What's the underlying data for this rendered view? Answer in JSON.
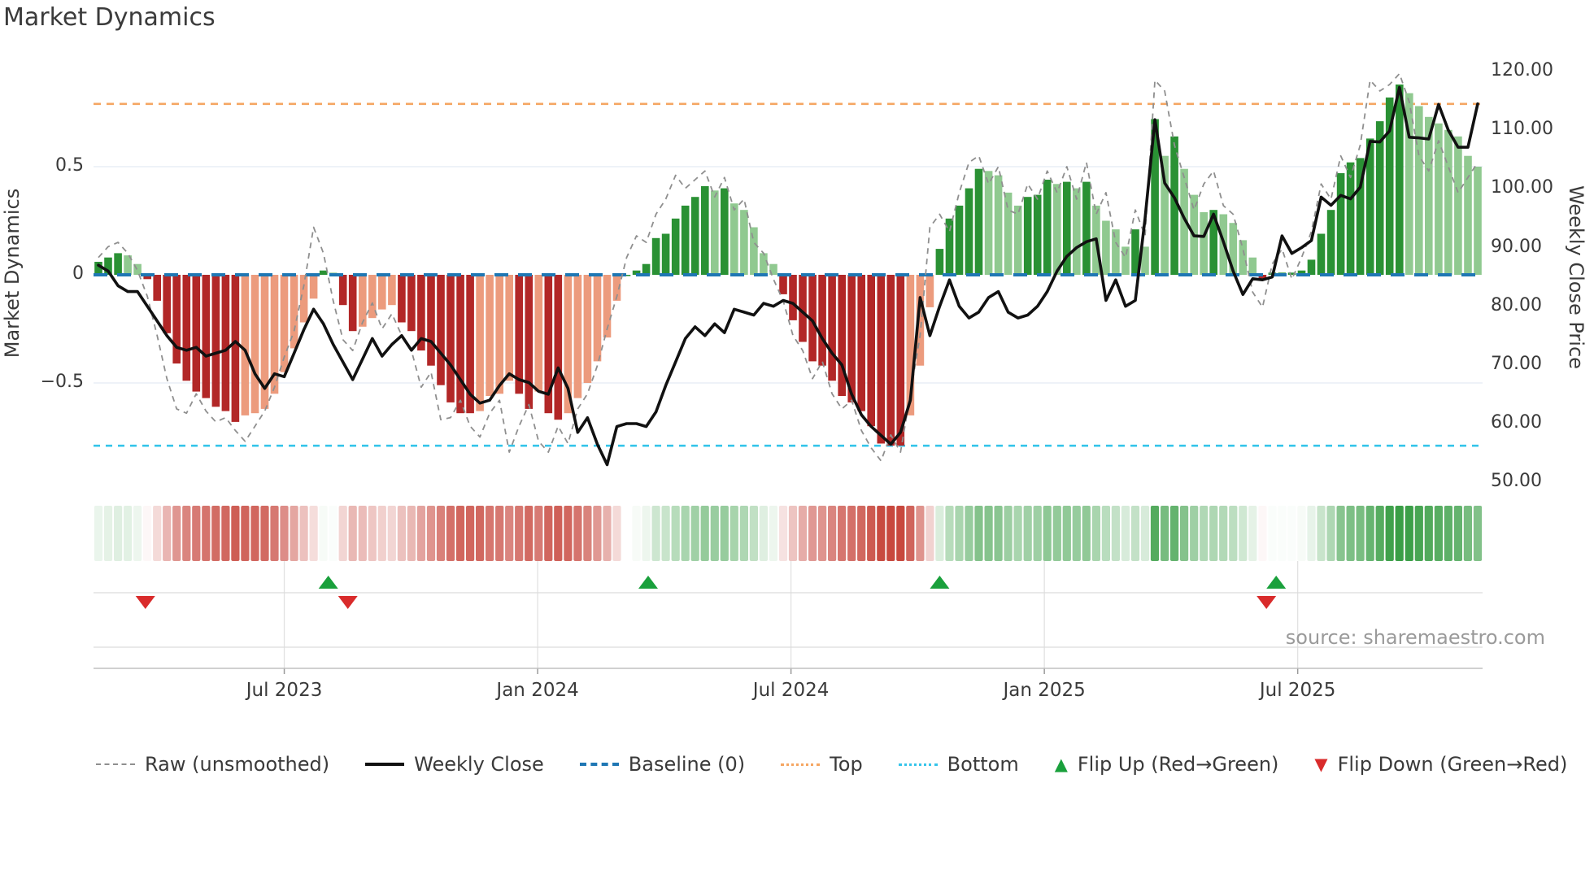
{
  "title": "Market Dynamics",
  "source": "source: sharemaestro.com",
  "left_axis": {
    "title": "Market Dynamics",
    "ticks": [
      {
        "label": "0.5",
        "value": 0.5
      },
      {
        "label": "0",
        "value": 0.0
      },
      {
        "label": "−0.5",
        "value": -0.5
      }
    ]
  },
  "right_axis": {
    "title": "Weekly Close Price",
    "ticks": [
      {
        "label": "120.00",
        "value": 120
      },
      {
        "label": "110.00",
        "value": 110
      },
      {
        "label": "100.00",
        "value": 100
      },
      {
        "label": "90.00",
        "value": 90
      },
      {
        "label": "80.00",
        "value": 80
      },
      {
        "label": "70.00",
        "value": 70
      },
      {
        "label": "60.00",
        "value": 60
      },
      {
        "label": "50.00",
        "value": 50
      }
    ]
  },
  "x_axis": {
    "ticks": [
      {
        "label": "Jul 2023",
        "week": 19.0
      },
      {
        "label": "Jan 2024",
        "week": 44.9
      },
      {
        "label": "Jul 2024",
        "week": 70.8
      },
      {
        "label": "Jan 2025",
        "week": 96.7
      },
      {
        "label": "Jul 2025",
        "week": 122.6
      }
    ]
  },
  "legend": {
    "items": [
      {
        "label": "Raw (unsmoothed)",
        "swatch": "dash-gray"
      },
      {
        "label": "Weekly Close",
        "swatch": "line-black"
      },
      {
        "label": "Baseline (0)",
        "swatch": "dash-blue"
      },
      {
        "label": "Top",
        "swatch": "dot-orange"
      },
      {
        "label": "Bottom",
        "swatch": "dot-cyan"
      },
      {
        "label": "Flip Up (Red→Green)",
        "swatch": "tri-up"
      },
      {
        "label": "Flip Down (Green→Red)",
        "swatch": "tri-down"
      }
    ]
  },
  "colors": {
    "bar_green_dark": "#2a9134",
    "bar_green_light": "#90c990",
    "bar_red_dark": "#b22727",
    "bar_red_light": "#ec9b7d",
    "baseline_blue": "#1f77b4",
    "top_orange": "#f5a662",
    "bottom_cyan": "#35c4ea",
    "raw_gray": "#8f8f8f",
    "close_black": "#111111",
    "flip_up_green": "#1aa03c",
    "flip_down_red": "#d92b2b",
    "grid_light": "#e9edf5",
    "grid_band": "#dcdcdc",
    "axis_line": "#c0c0c0",
    "heat_green_max": "#3a9e46",
    "heat_red_max": "#c43c32"
  },
  "chart_data": {
    "type": "bar",
    "subtype": "oscillator-with-price-overlay",
    "weeks": 142,
    "ylim_left": [
      -0.9,
      1.0
    ],
    "ylim_right": [
      48,
      122
    ],
    "reference_lines": {
      "baseline": 0.0,
      "top": 0.79,
      "bottom": -0.79
    },
    "grid": "horizontal at ±0.5",
    "legend_position": "bottom",
    "series": [
      {
        "name": "Oscillator (bars, smoothed)",
        "axis": "left",
        "values": [
          0.06,
          0.08,
          0.1,
          0.09,
          0.05,
          -0.02,
          -0.12,
          -0.27,
          -0.41,
          -0.49,
          -0.54,
          -0.57,
          -0.61,
          -0.63,
          -0.68,
          -0.65,
          -0.64,
          -0.62,
          -0.55,
          -0.45,
          -0.34,
          -0.22,
          -0.11,
          0.02,
          0.01,
          -0.14,
          -0.26,
          -0.24,
          -0.2,
          -0.16,
          -0.14,
          -0.22,
          -0.26,
          -0.35,
          -0.42,
          -0.51,
          -0.59,
          -0.64,
          -0.64,
          -0.63,
          -0.56,
          -0.55,
          -0.49,
          -0.55,
          -0.62,
          -0.54,
          -0.64,
          -0.67,
          -0.64,
          -0.57,
          -0.5,
          -0.4,
          -0.29,
          -0.12,
          0.0,
          0.02,
          0.05,
          0.17,
          0.19,
          0.26,
          0.32,
          0.36,
          0.41,
          0.39,
          0.4,
          0.33,
          0.3,
          0.22,
          0.1,
          0.05,
          -0.09,
          -0.21,
          -0.31,
          -0.4,
          -0.42,
          -0.49,
          -0.56,
          -0.59,
          -0.63,
          -0.7,
          -0.78,
          -0.79,
          -0.79,
          -0.65,
          -0.42,
          -0.15,
          0.12,
          0.26,
          0.32,
          0.4,
          0.49,
          0.48,
          0.46,
          0.38,
          0.32,
          0.36,
          0.37,
          0.44,
          0.42,
          0.43,
          0.4,
          0.43,
          0.32,
          0.25,
          0.21,
          0.13,
          0.21,
          0.13,
          0.72,
          0.55,
          0.64,
          0.49,
          0.37,
          0.29,
          0.3,
          0.28,
          0.24,
          0.16,
          0.08,
          -0.02,
          0.01,
          0.01,
          0.01,
          0.02,
          0.07,
          0.19,
          0.3,
          0.47,
          0.52,
          0.54,
          0.63,
          0.71,
          0.82,
          0.88,
          0.84,
          0.78,
          0.73,
          0.7,
          0.67,
          0.64,
          0.55,
          0.5
        ]
      },
      {
        "name": "Raw (unsmoothed)",
        "axis": "left",
        "values": [
          0.08,
          0.13,
          0.15,
          0.1,
          0.02,
          -0.1,
          -0.28,
          -0.48,
          -0.62,
          -0.64,
          -0.55,
          -0.63,
          -0.68,
          -0.66,
          -0.72,
          -0.77,
          -0.7,
          -0.63,
          -0.52,
          -0.38,
          -0.26,
          -0.05,
          0.22,
          0.1,
          -0.12,
          -0.3,
          -0.35,
          -0.22,
          -0.13,
          -0.25,
          -0.18,
          -0.28,
          -0.35,
          -0.52,
          -0.45,
          -0.67,
          -0.66,
          -0.58,
          -0.7,
          -0.75,
          -0.64,
          -0.58,
          -0.82,
          -0.7,
          -0.6,
          -0.77,
          -0.82,
          -0.7,
          -0.78,
          -0.62,
          -0.55,
          -0.42,
          -0.25,
          -0.1,
          0.08,
          0.18,
          0.15,
          0.28,
          0.35,
          0.46,
          0.4,
          0.44,
          0.48,
          0.36,
          0.45,
          0.3,
          0.35,
          0.15,
          0.1,
          -0.02,
          -0.12,
          -0.28,
          -0.35,
          -0.48,
          -0.4,
          -0.55,
          -0.62,
          -0.58,
          -0.72,
          -0.8,
          -0.86,
          -0.74,
          -0.82,
          -0.55,
          -0.28,
          0.22,
          0.28,
          0.2,
          0.38,
          0.52,
          0.55,
          0.42,
          0.5,
          0.3,
          0.28,
          0.42,
          0.35,
          0.48,
          0.38,
          0.5,
          0.35,
          0.52,
          0.28,
          0.38,
          0.15,
          0.08,
          0.3,
          0.18,
          0.9,
          0.85,
          0.6,
          0.45,
          0.3,
          0.42,
          0.48,
          0.32,
          0.28,
          0.12,
          -0.08,
          -0.15,
          0.05,
          0.12,
          -0.02,
          0.08,
          0.2,
          0.42,
          0.35,
          0.55,
          0.45,
          0.6,
          0.9,
          0.85,
          0.88,
          0.93,
          0.8,
          0.55,
          0.48,
          0.62,
          0.5,
          0.38,
          0.45,
          0.52
        ]
      },
      {
        "name": "Weekly Close",
        "axis": "right",
        "values": [
          87,
          86,
          83.5,
          82.5,
          82.5,
          80,
          77.5,
          75,
          73,
          72.5,
          73,
          71.5,
          72,
          72.5,
          74,
          72.5,
          68.5,
          66,
          68.5,
          68,
          72,
          76,
          79.5,
          77,
          73.5,
          70.5,
          67.5,
          71,
          74.5,
          71.5,
          73.5,
          75,
          72.5,
          74.5,
          74,
          72,
          70,
          67.5,
          65,
          63.5,
          64,
          66.5,
          68.5,
          67.5,
          67,
          65.5,
          65,
          69.5,
          66,
          58.5,
          61,
          56.5,
          53,
          59.5,
          60,
          60,
          59.5,
          62,
          66.5,
          70.5,
          74.5,
          76.5,
          75,
          77,
          75.5,
          79.5,
          79,
          78.5,
          80.5,
          80,
          81,
          80.5,
          79,
          77.5,
          74.5,
          72,
          70,
          65,
          61.5,
          59.5,
          58,
          56.5,
          58.5,
          64,
          81.5,
          75,
          80,
          84.5,
          80,
          78,
          79,
          81.5,
          82.5,
          79,
          78,
          78.5,
          80,
          82.5,
          86,
          88.5,
          90,
          91,
          91.5,
          81,
          84.5,
          80,
          81,
          95,
          111.8,
          101,
          98.5,
          95,
          92,
          91.9,
          95.7,
          91,
          86,
          82,
          84.7,
          84.5,
          85,
          92,
          89,
          90,
          91.2,
          98.6,
          97.2,
          98.9,
          98.3,
          100.3,
          108.1,
          108,
          109.9,
          117.3,
          108.8,
          108.7,
          108.5,
          114.4,
          110,
          107.1,
          107.1,
          114.5
        ]
      }
    ],
    "markers": [
      {
        "week": 4.8,
        "type": "down",
        "label": "Flip Down (Green→Red)"
      },
      {
        "week": 23.5,
        "type": "up",
        "label": "Flip Up (Red→Green)"
      },
      {
        "week": 25.5,
        "type": "down",
        "label": "Flip Down (Green→Red)"
      },
      {
        "week": 56.2,
        "type": "up",
        "label": "Flip Up (Red→Green)"
      },
      {
        "week": 86.0,
        "type": "up",
        "label": "Flip Up (Red→Green)"
      },
      {
        "week": 119.4,
        "type": "down",
        "label": "Flip Down (Green→Red)"
      },
      {
        "week": 120.4,
        "type": "up",
        "label": "Flip Up (Red→Green)"
      }
    ],
    "heat_strip": "sign/intensity of oscillator per week"
  }
}
